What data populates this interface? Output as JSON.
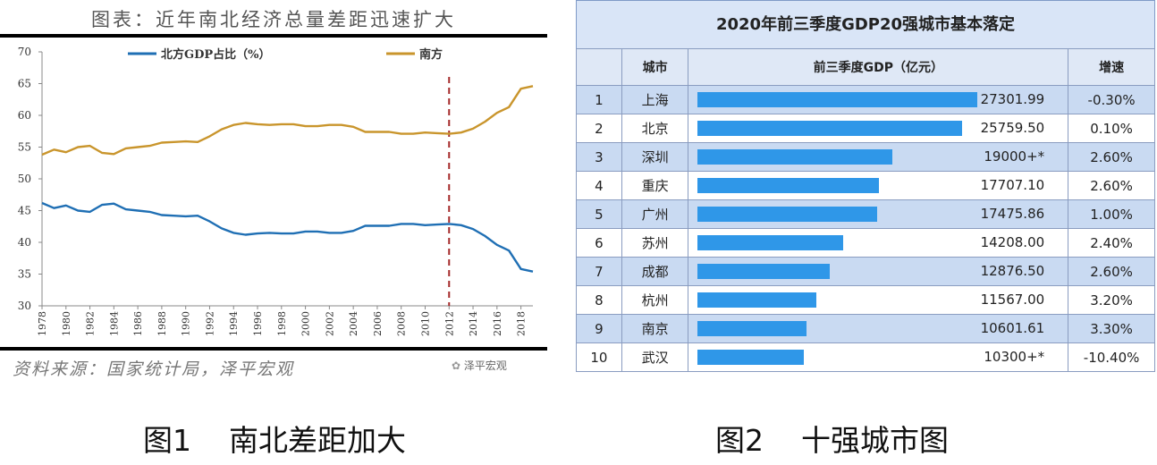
{
  "chart1": {
    "title": "图表：近年南北经济总量差距迅速扩大",
    "source": "资料来源：国家统计局，泽平宏观",
    "watermark": "泽平宏观",
    "caption": "图1    南北差距加大"
  },
  "chart_data": [
    {
      "type": "line",
      "title": "图表：近年南北经济总量差距迅速扩大",
      "xlabel": "",
      "ylabel": "",
      "x": [
        1978,
        1979,
        1980,
        1981,
        1982,
        1983,
        1984,
        1985,
        1986,
        1987,
        1988,
        1989,
        1990,
        1991,
        1992,
        1993,
        1994,
        1995,
        1996,
        1997,
        1998,
        1999,
        2000,
        2001,
        2002,
        2003,
        2004,
        2005,
        2006,
        2007,
        2008,
        2009,
        2010,
        2011,
        2012,
        2013,
        2014,
        2015,
        2016,
        2017,
        2018,
        2019
      ],
      "x_tick_labels": [
        "1978",
        "1980",
        "1982",
        "1984",
        "1986",
        "1988",
        "1990",
        "1992",
        "1994",
        "1996",
        "1998",
        "2000",
        "2002",
        "2004",
        "2006",
        "2008",
        "2010",
        "2012",
        "2014",
        "2016",
        "2018"
      ],
      "ylim": [
        30,
        70
      ],
      "y_ticks": [
        30,
        35,
        40,
        45,
        50,
        55,
        60,
        65,
        70
      ],
      "legend_position": "top",
      "grid": false,
      "series": [
        {
          "name": "北方GDP占比（%）",
          "color": "#1f6fb4",
          "values": [
            46.2,
            45.4,
            45.8,
            45.0,
            44.8,
            45.9,
            46.1,
            45.2,
            45.0,
            44.8,
            44.3,
            44.2,
            44.1,
            44.2,
            43.3,
            42.2,
            41.5,
            41.2,
            41.4,
            41.5,
            41.4,
            41.4,
            41.7,
            41.7,
            41.5,
            41.5,
            41.8,
            42.6,
            42.6,
            42.6,
            42.9,
            42.9,
            42.7,
            42.8,
            42.9,
            42.7,
            42.1,
            41.0,
            39.6,
            38.7,
            35.8,
            35.4
          ]
        },
        {
          "name": "南方",
          "color": "#c9952c",
          "values": [
            53.8,
            54.6,
            54.2,
            55.0,
            55.2,
            54.1,
            53.9,
            54.8,
            55.0,
            55.2,
            55.7,
            55.8,
            55.9,
            55.8,
            56.7,
            57.8,
            58.5,
            58.8,
            58.6,
            58.5,
            58.6,
            58.6,
            58.3,
            58.3,
            58.5,
            58.5,
            58.2,
            57.4,
            57.4,
            57.4,
            57.1,
            57.1,
            57.3,
            57.2,
            57.1,
            57.3,
            57.9,
            59.0,
            60.4,
            61.3,
            64.2,
            64.6
          ]
        }
      ],
      "annotations": [
        {
          "type": "vertical-dashed-line",
          "x": 2012,
          "color": "#a52a2a"
        }
      ]
    },
    {
      "type": "table",
      "title": "2020年前三季度GDP20强城市基本落定",
      "columns": [
        "",
        "城市",
        "前三季度GDP（亿元）",
        "增速"
      ],
      "rows": [
        {
          "rank": "1",
          "city": "上海",
          "gdp": 27301.99,
          "gdp_label": "27301.99",
          "growth": "-0.30%"
        },
        {
          "rank": "2",
          "city": "北京",
          "gdp": 25759.5,
          "gdp_label": "25759.50",
          "growth": "0.10%"
        },
        {
          "rank": "3",
          "city": "深圳",
          "gdp": 19000,
          "gdp_label": "19000+*",
          "growth": "2.60%"
        },
        {
          "rank": "4",
          "city": "重庆",
          "gdp": 17707.1,
          "gdp_label": "17707.10",
          "growth": "2.60%"
        },
        {
          "rank": "5",
          "city": "广州",
          "gdp": 17475.86,
          "gdp_label": "17475.86",
          "growth": "1.00%"
        },
        {
          "rank": "6",
          "city": "苏州",
          "gdp": 14208.0,
          "gdp_label": "14208.00",
          "growth": "2.40%"
        },
        {
          "rank": "7",
          "city": "成都",
          "gdp": 12876.5,
          "gdp_label": "12876.50",
          "growth": "2.60%"
        },
        {
          "rank": "8",
          "city": "杭州",
          "gdp": 11567.0,
          "gdp_label": "11567.00",
          "growth": "3.20%"
        },
        {
          "rank": "9",
          "city": "南京",
          "gdp": 10601.61,
          "gdp_label": "10601.61",
          "growth": "3.30%"
        },
        {
          "rank": "10",
          "city": "武汉",
          "gdp": 10300,
          "gdp_label": "10300+*",
          "growth": "-10.40%"
        }
      ],
      "bar_color": "#2f97e8"
    }
  ],
  "table": {
    "title": "2020年前三季度GDP20强城市基本落定",
    "header_rank": "",
    "header_city": "城市",
    "header_gdp": "前三季度GDP（亿元）",
    "header_growth": "增速",
    "caption": "图2    十强城市图"
  }
}
